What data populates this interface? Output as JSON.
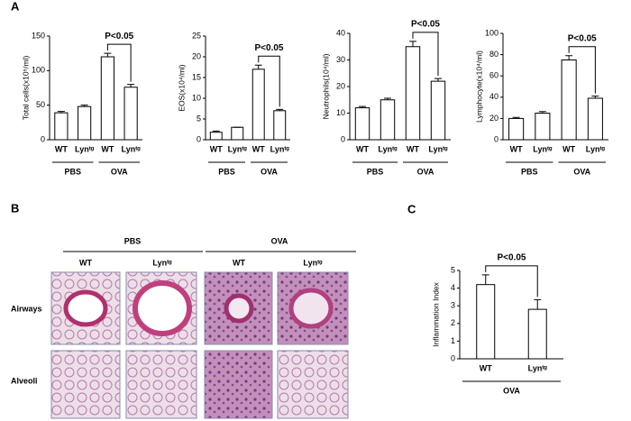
{
  "panel_labels": [
    "A",
    "B",
    "C"
  ],
  "chart_data": [
    {
      "type": "bar",
      "y_label": "Total cells(x10⁵/ml)",
      "categories": [
        "WT",
        "Lynᵗᵍ",
        "WT",
        "Lynᵗᵍ"
      ],
      "values": [
        39,
        48,
        120,
        76
      ],
      "errors": [
        2,
        2,
        5,
        4
      ],
      "group_labels": [
        "PBS",
        "OVA"
      ],
      "annotation": "P<0.05",
      "ylim": [
        0,
        150
      ],
      "yticks": [
        0,
        50,
        100,
        150
      ],
      "color": "#ffffff"
    },
    {
      "type": "bar",
      "y_label": "EOS(x10⁴/ml)",
      "categories": [
        "WT",
        "Lynᵗᵍ",
        "WT",
        "Lynᵗᵍ"
      ],
      "values": [
        1.8,
        3,
        17,
        7
      ],
      "errors": [
        0.3,
        0,
        1,
        0.3
      ],
      "group_labels": [
        "PBS",
        "OVA"
      ],
      "annotation": "P<0.05",
      "ylim": [
        0,
        25
      ],
      "yticks": [
        0,
        5,
        10,
        15,
        20,
        25
      ],
      "color": "#ffffff"
    },
    {
      "type": "bar",
      "y_label": "Neutrophils(10⁴/ml)",
      "categories": [
        "WT",
        "Lynᵗᵍ",
        "WT",
        "Lynᵗᵍ"
      ],
      "values": [
        12,
        15,
        35,
        22
      ],
      "errors": [
        0.5,
        0.6,
        2,
        1
      ],
      "group_labels": [
        "PBS",
        "OVA"
      ],
      "annotation": "P<0.05",
      "ylim": [
        0,
        40
      ],
      "yticks": [
        0,
        10,
        20,
        30,
        40
      ],
      "color": "#ffffff"
    },
    {
      "type": "bar",
      "y_label": "Lymphocyte(x10⁴/ml)",
      "categories": [
        "WT",
        "Lynᵗᵍ",
        "WT",
        "Lynᵗᵍ"
      ],
      "values": [
        20,
        25,
        75,
        39
      ],
      "errors": [
        1,
        1.5,
        4,
        2
      ],
      "group_labels": [
        "PBS",
        "OVA"
      ],
      "annotation": "P<0.05",
      "ylim": [
        0,
        100
      ],
      "yticks": [
        0,
        20,
        40,
        60,
        80,
        100
      ],
      "color": "#ffffff"
    },
    {
      "type": "bar",
      "y_label": "Inflammation Index",
      "categories": [
        "WT",
        "Lynᵗᵍ"
      ],
      "values": [
        4.2,
        2.8
      ],
      "errors": [
        0.55,
        0.55
      ],
      "group_labels": [
        "OVA"
      ],
      "annotation": "P<0.05",
      "ylim": [
        0,
        5
      ],
      "yticks": [
        0,
        1,
        2,
        3,
        4,
        5
      ],
      "color": "#ffffff"
    }
  ],
  "histology": {
    "groups": [
      "PBS",
      "OVA"
    ],
    "columns": [
      "WT",
      "Lynᵗᵍ",
      "WT",
      "Lynᵗᵍ"
    ],
    "rows": [
      "Airways",
      "Alveoli"
    ]
  }
}
